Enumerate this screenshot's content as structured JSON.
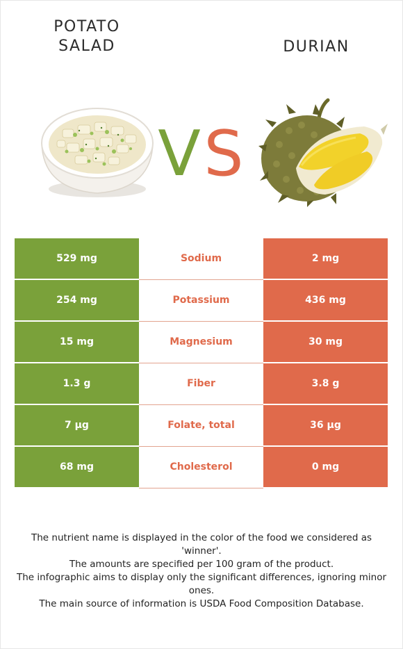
{
  "foods": {
    "left": {
      "name": "POTATO SALAD",
      "name_line1": "POTATO",
      "name_line2": "SALAD",
      "image_icon": "potato-salad-bowl"
    },
    "right": {
      "name": "DURIAN",
      "image_icon": "durian-fruit"
    },
    "vs_v": "V",
    "vs_s": "S"
  },
  "colors": {
    "left": "#7aa13a",
    "right": "#e06a4b",
    "winner_right": "#e06a4b"
  },
  "rows": [
    {
      "nutrient": "Sodium",
      "left": "529 mg",
      "right": "2 mg",
      "winner": "right"
    },
    {
      "nutrient": "Potassium",
      "left": "254 mg",
      "right": "436 mg",
      "winner": "right"
    },
    {
      "nutrient": "Magnesium",
      "left": "15 mg",
      "right": "30 mg",
      "winner": "right"
    },
    {
      "nutrient": "Fiber",
      "left": "1.3 g",
      "right": "3.8 g",
      "winner": "right"
    },
    {
      "nutrient": "Folate, total",
      "left": "7 µg",
      "right": "36 µg",
      "winner": "right"
    },
    {
      "nutrient": "Cholesterol",
      "left": "68 mg",
      "right": "0 mg",
      "winner": "right"
    }
  ],
  "footer": {
    "line1": "The nutrient name is displayed in the color of the food we considered as 'winner'.",
    "line2": "The amounts are specified per 100 gram of the product.",
    "line3": "The infographic aims to display only the significant differences, ignoring minor ones.",
    "line4": "The main source of information is USDA Food Composition Database."
  }
}
